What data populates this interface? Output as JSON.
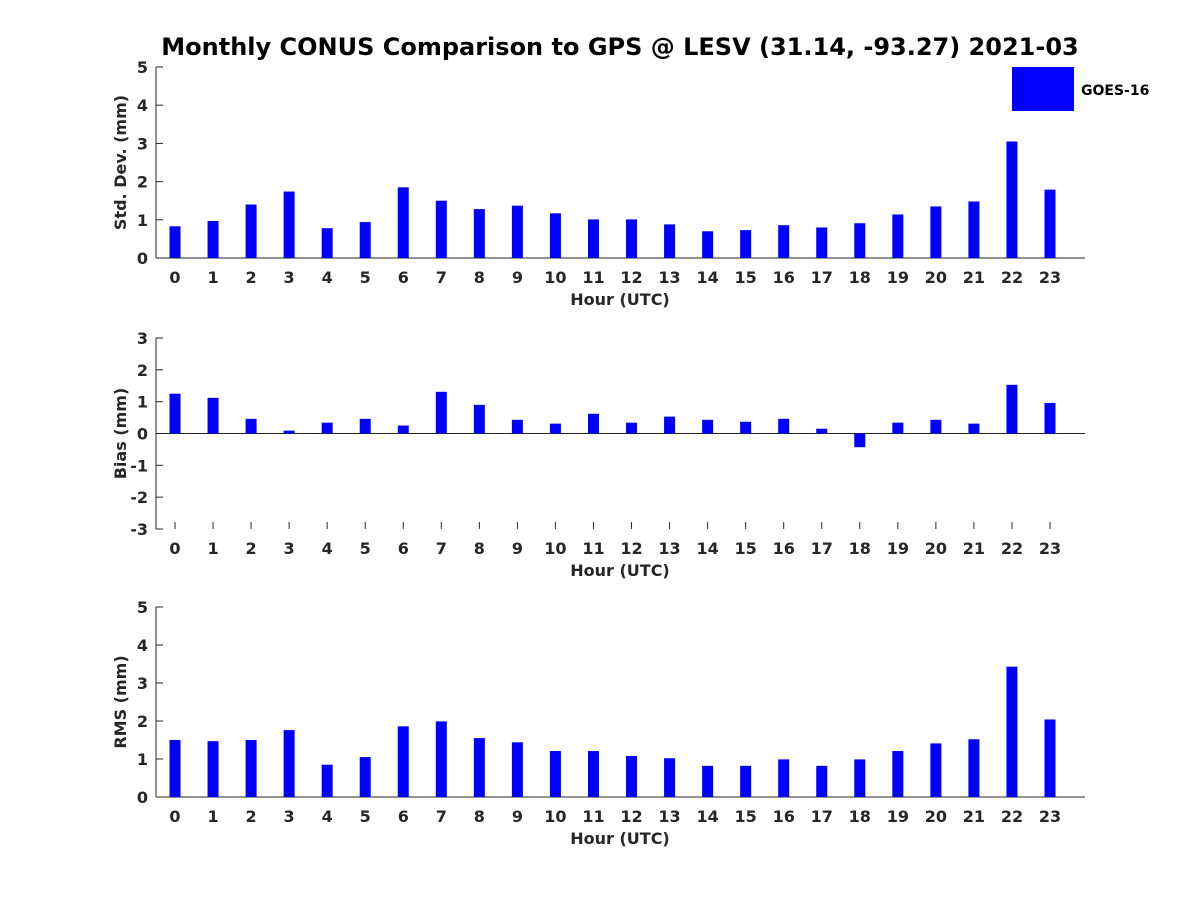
{
  "title": "Monthly CONUS Comparison to GPS @ LESV (31.14, -93.27) 2021-03",
  "legend": {
    "label": "GOES-16",
    "color": "#0000ff"
  },
  "chart_data": [
    {
      "type": "bar",
      "name": "std-dev",
      "ylabel": "Std. Dev. (mm)",
      "xlabel": "Hour (UTC)",
      "ylim": [
        0,
        5
      ],
      "yticks": [
        0,
        1,
        2,
        3,
        4,
        5
      ],
      "categories": [
        "0",
        "1",
        "2",
        "3",
        "4",
        "5",
        "6",
        "7",
        "8",
        "9",
        "10",
        "11",
        "12",
        "13",
        "14",
        "15",
        "16",
        "17",
        "18",
        "19",
        "20",
        "21",
        "22",
        "23"
      ],
      "series": [
        {
          "name": "GOES-16",
          "values": [
            0.83,
            0.97,
            1.4,
            1.74,
            0.78,
            0.94,
            1.85,
            1.5,
            1.28,
            1.37,
            1.17,
            1.01,
            1.01,
            0.88,
            0.7,
            0.73,
            0.86,
            0.8,
            0.91,
            1.14,
            1.35,
            1.48,
            3.05,
            1.79
          ]
        }
      ]
    },
    {
      "type": "bar",
      "name": "bias",
      "ylabel": "Bias (mm)",
      "xlabel": "Hour (UTC)",
      "ylim": [
        -3,
        3
      ],
      "yticks": [
        -3,
        -2,
        -1,
        0,
        1,
        2,
        3
      ],
      "categories": [
        "0",
        "1",
        "2",
        "3",
        "4",
        "5",
        "6",
        "7",
        "8",
        "9",
        "10",
        "11",
        "12",
        "13",
        "14",
        "15",
        "16",
        "17",
        "18",
        "19",
        "20",
        "21",
        "22",
        "23"
      ],
      "series": [
        {
          "name": "GOES-16",
          "values": [
            1.25,
            1.12,
            0.46,
            0.09,
            0.34,
            0.46,
            0.25,
            1.31,
            0.9,
            0.43,
            0.31,
            0.62,
            0.34,
            0.53,
            0.43,
            0.37,
            0.46,
            0.15,
            -0.43,
            0.34,
            0.43,
            0.31,
            1.53,
            0.96
          ]
        }
      ]
    },
    {
      "type": "bar",
      "name": "rms",
      "ylabel": "RMS (mm)",
      "xlabel": "Hour (UTC)",
      "ylim": [
        0,
        5
      ],
      "yticks": [
        0,
        1,
        2,
        3,
        4,
        5
      ],
      "categories": [
        "0",
        "1",
        "2",
        "3",
        "4",
        "5",
        "6",
        "7",
        "8",
        "9",
        "10",
        "11",
        "12",
        "13",
        "14",
        "15",
        "16",
        "17",
        "18",
        "19",
        "20",
        "21",
        "22",
        "23"
      ],
      "series": [
        {
          "name": "GOES-16",
          "values": [
            1.5,
            1.47,
            1.5,
            1.76,
            0.85,
            1.05,
            1.86,
            1.99,
            1.55,
            1.44,
            1.21,
            1.21,
            1.08,
            1.02,
            0.82,
            0.82,
            0.99,
            0.82,
            0.99,
            1.21,
            1.41,
            1.52,
            3.43,
            2.04
          ]
        }
      ]
    }
  ]
}
